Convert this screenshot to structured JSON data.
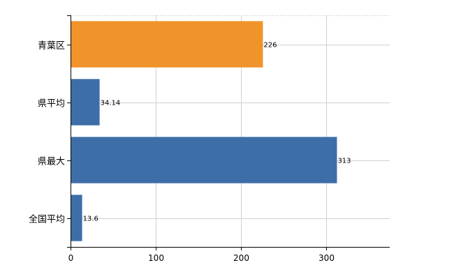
{
  "chart_data": {
    "type": "bar",
    "orientation": "horizontal",
    "categories": [
      "青葉区",
      "県平均",
      "県最大",
      "全国平均"
    ],
    "values": [
      226,
      34.14,
      313,
      13.6
    ],
    "value_labels": [
      "226",
      "34.14",
      "313",
      "13.6"
    ],
    "colors": [
      "#f0932b",
      "#3e6ea8",
      "#3e6ea8",
      "#3e6ea8"
    ],
    "xlim": [
      0,
      375
    ],
    "xticks": [
      0,
      100,
      200,
      300
    ],
    "xtick_labels": [
      "0",
      "100",
      "200",
      "300"
    ],
    "grid": true,
    "legend": "none",
    "title": "",
    "xlabel": "",
    "ylabel": ""
  }
}
